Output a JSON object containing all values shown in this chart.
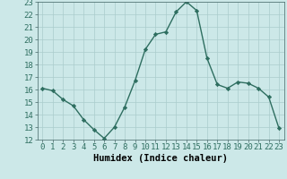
{
  "xlabel": "Humidex (Indice chaleur)",
  "x": [
    0,
    1,
    2,
    3,
    4,
    5,
    6,
    7,
    8,
    9,
    10,
    11,
    12,
    13,
    14,
    15,
    16,
    17,
    18,
    19,
    20,
    21,
    22,
    23
  ],
  "y": [
    16.1,
    15.9,
    15.2,
    14.7,
    13.6,
    12.8,
    12.1,
    13.0,
    14.6,
    16.7,
    19.2,
    20.4,
    20.6,
    22.2,
    23.0,
    22.3,
    18.5,
    16.4,
    16.1,
    16.6,
    16.5,
    16.1,
    15.4,
    12.9
  ],
  "line_color": "#2e6e60",
  "marker": "D",
  "marker_size": 2.2,
  "bg_color": "#cce8e8",
  "grid_color": "#aacccc",
  "ylim": [
    12,
    23
  ],
  "yticks": [
    12,
    13,
    14,
    15,
    16,
    17,
    18,
    19,
    20,
    21,
    22,
    23
  ],
  "xticks": [
    0,
    1,
    2,
    3,
    4,
    5,
    6,
    7,
    8,
    9,
    10,
    11,
    12,
    13,
    14,
    15,
    16,
    17,
    18,
    19,
    20,
    21,
    22,
    23
  ],
  "xlabel_fontsize": 7.5,
  "tick_fontsize": 6.5,
  "line_width": 1.0
}
